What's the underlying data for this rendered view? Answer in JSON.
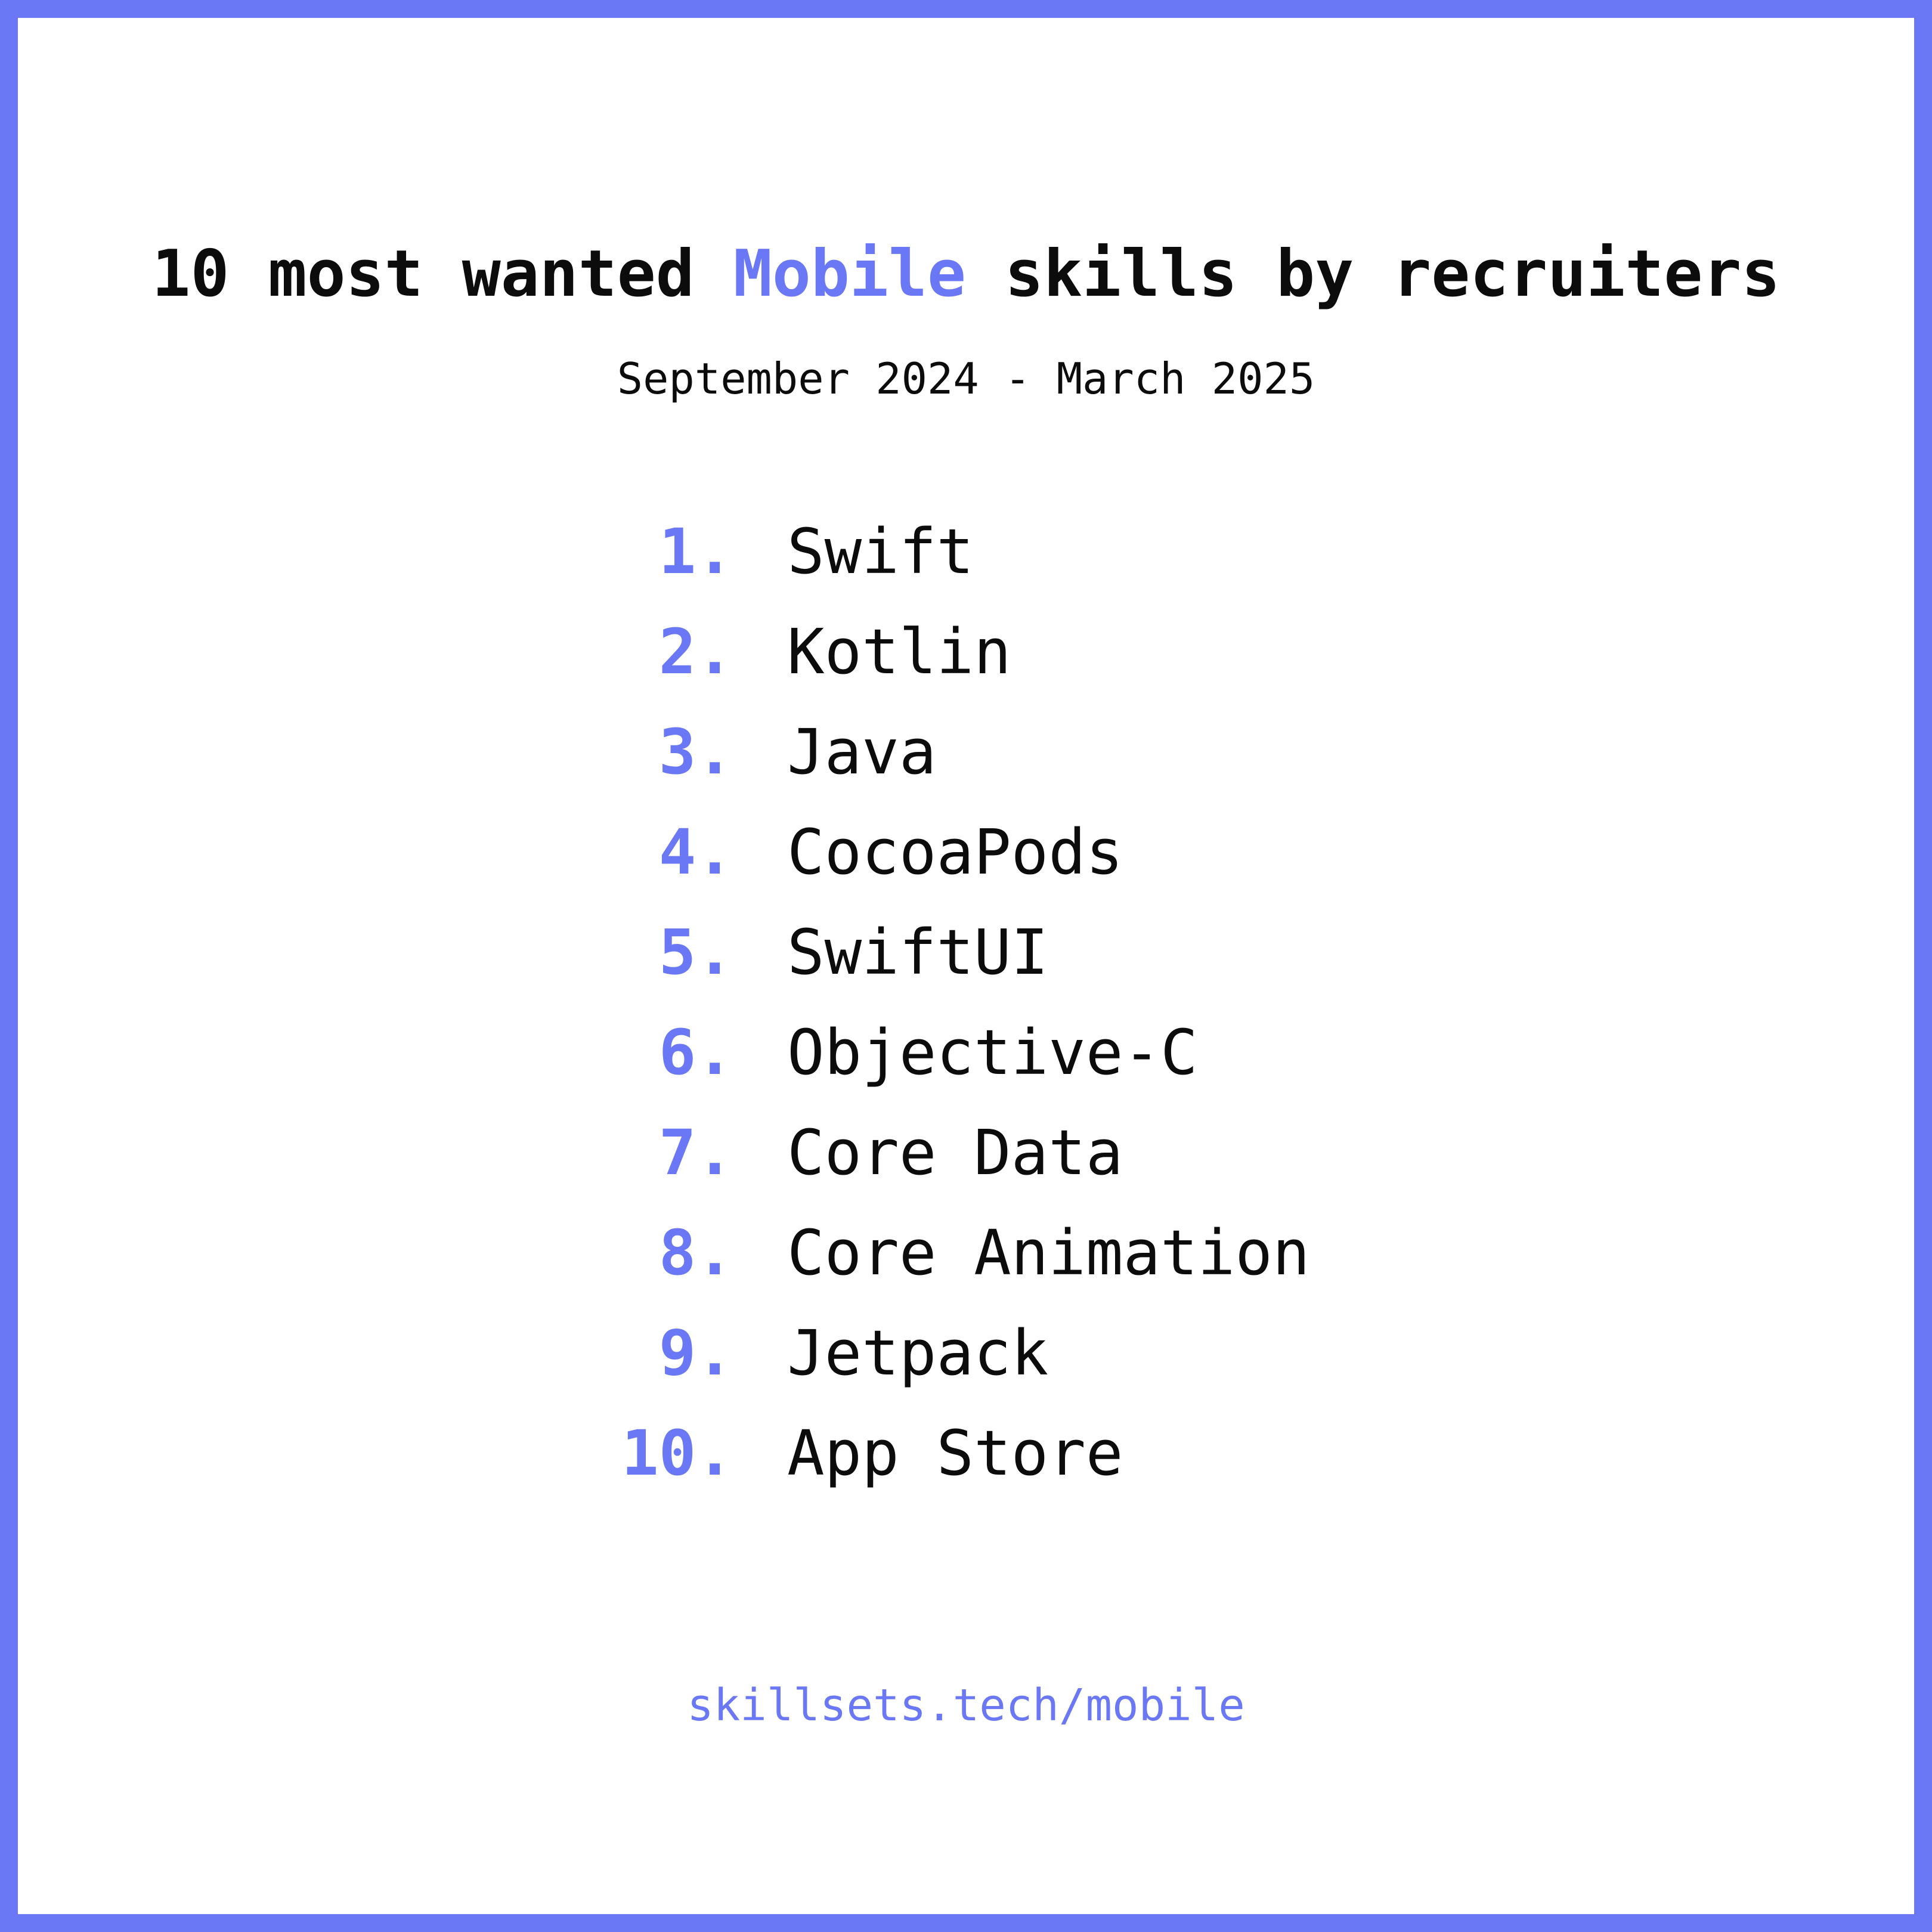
{
  "theme": {
    "accent_color": "#6b78f5",
    "text_color": "#0c0c0c",
    "background_color": "#ffffff"
  },
  "header": {
    "title_prefix": "10 most wanted ",
    "title_highlight": "Mobile",
    "title_suffix": " skills by recruiters",
    "subtitle": "September 2024 - March 2025"
  },
  "skills": [
    {
      "rank": "1.",
      "name": "Swift"
    },
    {
      "rank": "2.",
      "name": "Kotlin"
    },
    {
      "rank": "3.",
      "name": "Java"
    },
    {
      "rank": "4.",
      "name": "CocoaPods"
    },
    {
      "rank": "5.",
      "name": "SwiftUI"
    },
    {
      "rank": "6.",
      "name": "Objective-C"
    },
    {
      "rank": "7.",
      "name": "Core Data"
    },
    {
      "rank": "8.",
      "name": "Core Animation"
    },
    {
      "rank": "9.",
      "name": "Jetpack"
    },
    {
      "rank": "10.",
      "name": "App Store"
    }
  ],
  "footer": {
    "link_text": "skillsets.tech/mobile"
  }
}
